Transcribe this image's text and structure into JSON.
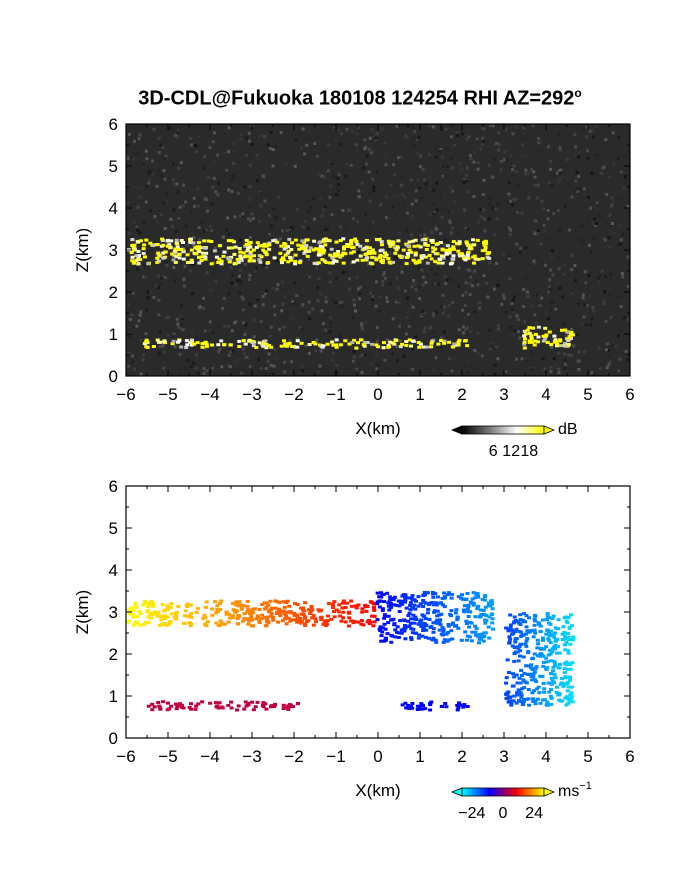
{
  "figure": {
    "title": "3D-CDL@Fukuoka 180108 124254 RHI AZ=292",
    "title_degree_mark": "o"
  },
  "chart_data": [
    {
      "type": "heatmap",
      "name": "signal-to-noise panel",
      "xlabel": "X(km)",
      "ylabel": "Z(km)",
      "xlim": [
        -6,
        6
      ],
      "ylim": [
        0,
        6
      ],
      "xticks": [
        "−6",
        "−5",
        "−4",
        "−3",
        "−2",
        "−1",
        "0",
        "1",
        "2",
        "3",
        "4",
        "5",
        "6"
      ],
      "yticks": [
        "0",
        "1",
        "2",
        "3",
        "4",
        "5",
        "6"
      ],
      "background": "noisy dark gray",
      "colorbar": {
        "unit": "dB",
        "ticks": [
          "6",
          "12",
          "18"
        ],
        "values": [
          6,
          12,
          18
        ],
        "colors": [
          "#000000",
          "#777777",
          "#ffffff",
          "#ffff00"
        ]
      },
      "features": [
        {
          "label": "upper cloud layer",
          "x": [
            -6,
            2.6
          ],
          "z": [
            2.7,
            3.3
          ],
          "peak_db": 18
        },
        {
          "label": "lower layer",
          "x": [
            -5.6,
            2.1
          ],
          "z": [
            0.7,
            0.9
          ],
          "peak_db": 18
        },
        {
          "label": "right patches",
          "x": [
            3.4,
            4.6
          ],
          "z": [
            0.7,
            1.2
          ],
          "peak_db": 18
        }
      ]
    },
    {
      "type": "heatmap",
      "name": "radial velocity panel",
      "xlabel": "X(km)",
      "ylabel": "Z(km)",
      "xlim": [
        -6,
        6
      ],
      "ylim": [
        0,
        6
      ],
      "xticks": [
        "−6",
        "−5",
        "−4",
        "−3",
        "−2",
        "−1",
        "0",
        "1",
        "2",
        "3",
        "4",
        "5",
        "6"
      ],
      "yticks": [
        "0",
        "1",
        "2",
        "3",
        "4",
        "5",
        "6"
      ],
      "background": "white",
      "colorbar": {
        "unit": "ms",
        "unit_exponent": "−1",
        "ticks": [
          "−24",
          "0",
          "24"
        ],
        "values": [
          -24,
          0,
          24
        ],
        "colors": [
          "#00ffff",
          "#0000ff",
          "#ff0000",
          "#ffff00"
        ]
      },
      "features": [
        {
          "label": "upper layer west",
          "x": [
            -6,
            -0.1
          ],
          "z": [
            2.7,
            3.3
          ],
          "velocity": [
            24,
            8
          ]
        },
        {
          "label": "upper layer east",
          "x": [
            -0.1,
            2.7
          ],
          "z": [
            2.3,
            3.5
          ],
          "velocity": [
            -8,
            -18
          ]
        },
        {
          "label": "lower layer west",
          "x": [
            -5.6,
            -1.9
          ],
          "z": [
            0.7,
            0.9
          ],
          "velocity": [
            4,
            4
          ]
        },
        {
          "label": "lower layer east",
          "x": [
            0.4,
            2.1
          ],
          "z": [
            0.7,
            0.9
          ],
          "velocity": [
            -8,
            -8
          ]
        },
        {
          "label": "right patches",
          "x": [
            3.0,
            4.6
          ],
          "z": [
            0.8,
            3.0
          ],
          "velocity": [
            -12,
            -22
          ]
        }
      ]
    }
  ]
}
